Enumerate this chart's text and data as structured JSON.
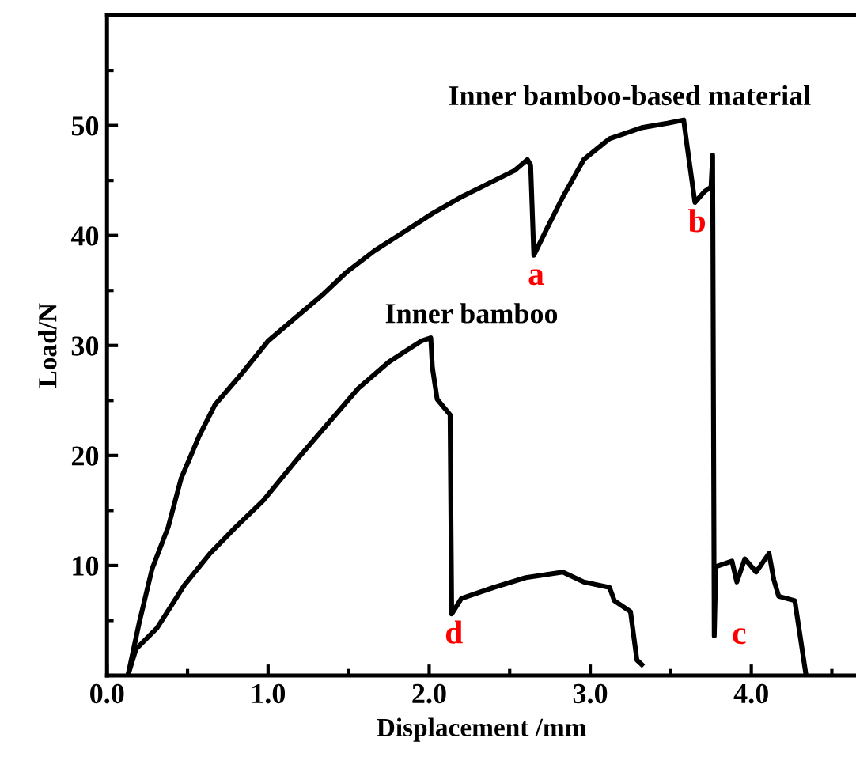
{
  "chart_data": {
    "type": "line",
    "xlabel": "Displacement /mm",
    "ylabel": "Load/N",
    "xlim": [
      0,
      4.65
    ],
    "ylim": [
      0,
      60
    ],
    "xticks": [
      {
        "value": 0,
        "label": "0.0"
      },
      {
        "value": 1,
        "label": "1.0"
      },
      {
        "value": 2,
        "label": "2.0"
      },
      {
        "value": 3,
        "label": "3.0"
      },
      {
        "value": 4,
        "label": "4.0"
      }
    ],
    "yticks": [
      10,
      20,
      30,
      40,
      50
    ],
    "grid": false,
    "legend": false,
    "marker": "none",
    "line_style": "solid",
    "series": [
      {
        "name": "Inner bamboo-based material",
        "color": "#000000",
        "x": [
          0.13,
          0.2,
          0.28,
          0.38,
          0.46,
          0.57,
          0.67,
          0.84,
          1.0,
          1.16,
          1.33,
          1.49,
          1.66,
          1.82,
          2.02,
          2.2,
          2.53,
          2.61,
          2.63,
          2.65,
          2.73,
          2.83,
          2.96,
          3.12,
          3.32,
          3.48,
          3.58,
          3.6,
          3.65,
          3.71,
          3.75,
          3.76,
          3.77,
          3.78,
          3.88,
          3.91,
          3.96,
          4.03,
          4.11,
          4.14,
          4.17,
          4.27,
          4.3,
          4.34
        ],
        "values": [
          0,
          4.8,
          9.7,
          13.5,
          17.9,
          21.7,
          24.6,
          27.5,
          30.4,
          32.4,
          34.5,
          36.7,
          38.6,
          40.1,
          42,
          43.5,
          45.9,
          46.9,
          46.4,
          38.2,
          40.6,
          43.5,
          46.9,
          48.8,
          49.8,
          50.2,
          50.5,
          48.3,
          43,
          44,
          44.4,
          47.3,
          3.6,
          9.9,
          10.4,
          8.5,
          10.6,
          9.4,
          11.1,
          8.7,
          7.2,
          6.8,
          3.9,
          0
        ]
      },
      {
        "name": "Inner bamboo",
        "color": "#000000",
        "x": [
          0.13,
          0.18,
          0.31,
          0.48,
          0.64,
          0.8,
          0.97,
          1.16,
          1.36,
          1.56,
          1.75,
          1.95,
          2.01,
          2.02,
          2.05,
          2.13,
          2.14,
          2.2,
          2.4,
          2.6,
          2.83,
          2.96,
          3.12,
          3.15,
          3.25,
          3.29,
          3.32
        ],
        "values": [
          0,
          2.4,
          4.3,
          8.2,
          11.1,
          13.5,
          15.9,
          19.3,
          22.7,
          26.1,
          28.5,
          30.4,
          30.7,
          28,
          25.1,
          23.7,
          5.6,
          7,
          8,
          8.9,
          9.4,
          8.5,
          8,
          6.8,
          5.8,
          1.4,
          1
        ]
      }
    ],
    "annotations": [
      {
        "text": "a",
        "x": 2.65,
        "y": 38.2
      },
      {
        "text": "b",
        "x": 3.65,
        "y": 43
      },
      {
        "text": "c",
        "x": 3.77,
        "y": 3.6
      },
      {
        "text": "d",
        "x": 2.14,
        "y": 5.6
      }
    ]
  }
}
